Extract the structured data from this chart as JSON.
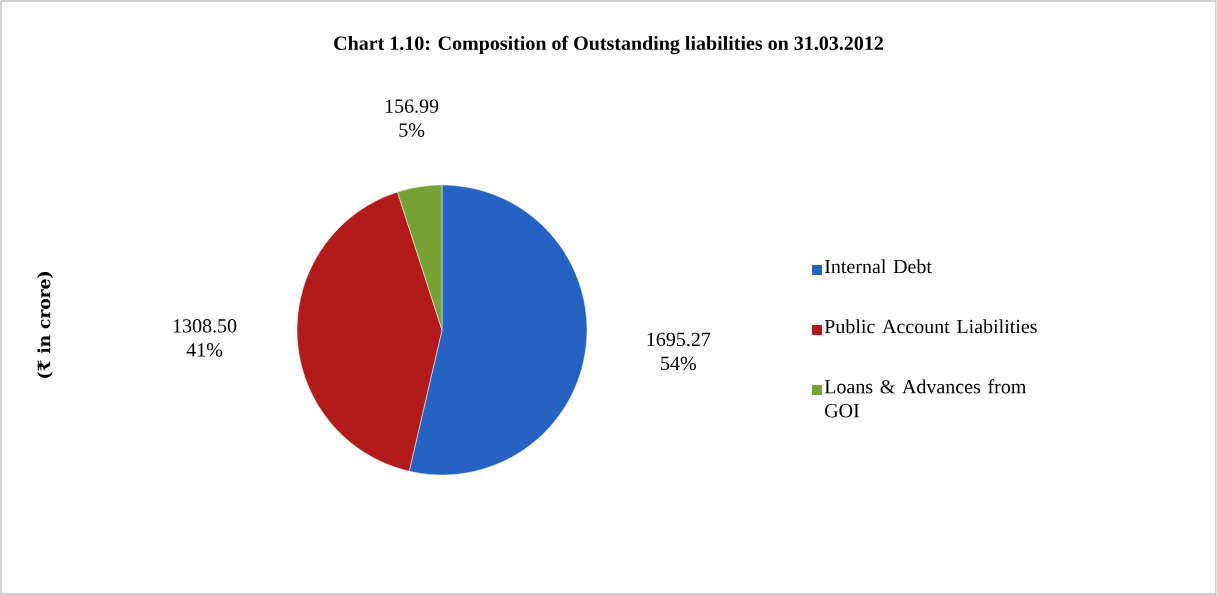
{
  "chart_data": {
    "type": "pie",
    "title": "Chart 1.10: Composition of Outstanding liabilities on 31.03.2012",
    "ylabel": "(₹ in crore)",
    "categories": [
      "Internal Debt",
      "Public Account Liabilities",
      "Loans & Advances from GOI"
    ],
    "values": [
      1695.27,
      1308.5,
      156.99
    ],
    "value_labels": [
      "1695.27 54%",
      "1308.50 41%",
      "156.99 5%"
    ],
    "colors": [
      "#2463c2",
      "#b31b1b",
      "#76a135"
    ],
    "legend": "right"
  }
}
